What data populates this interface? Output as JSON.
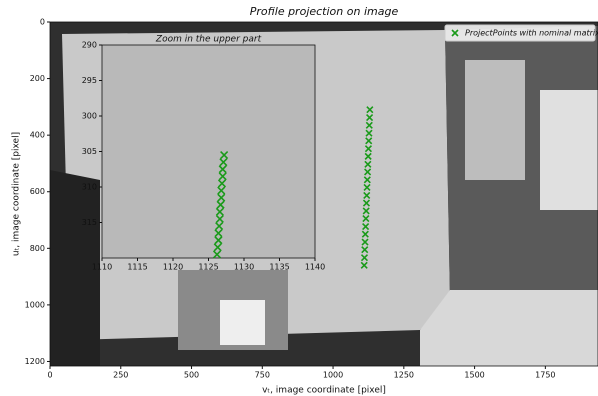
{
  "chart_data": [
    {
      "type": "scatter",
      "title": "Profile projection on image",
      "xlabel": "vₜ, image coordinate [pixel]",
      "ylabel": "uₜ, image coordinate [pixel]",
      "xlim": [
        0,
        1936
      ],
      "ylim": [
        0,
        1216
      ],
      "y_inverted": true,
      "xticks": [
        0,
        250,
        500,
        750,
        1000,
        1250,
        1500,
        1750
      ],
      "yticks": [
        0,
        200,
        400,
        600,
        800,
        1000,
        1200
      ],
      "legend": "upper right",
      "series": [
        {
          "name": "ProjectPoints with nominal matrix",
          "color": "#1a9a1a",
          "x": [
            1130,
            1129,
            1128,
            1127,
            1126,
            1125,
            1124,
            1123,
            1122,
            1121,
            1120,
            1119,
            1118,
            1117,
            1116,
            1115,
            1114,
            1113,
            1112,
            1111,
            1110
          ],
          "values": [
            310,
            338,
            365,
            393,
            420,
            448,
            475,
            503,
            530,
            558,
            585,
            613,
            640,
            668,
            695,
            723,
            750,
            778,
            805,
            833,
            860
          ]
        }
      ]
    },
    {
      "type": "scatter",
      "title": "Zoom in the upper part",
      "xlim": [
        1110,
        1140
      ],
      "ylim": [
        290,
        320
      ],
      "y_inverted": true,
      "xticks": [
        1110,
        1115,
        1120,
        1125,
        1130,
        1135,
        1140
      ],
      "yticks": [
        290,
        295,
        300,
        305,
        310,
        315
      ],
      "series": [
        {
          "color": "#1a9a1a",
          "x": [
            1127.2,
            1127.1,
            1127.0,
            1127.0,
            1126.9,
            1126.8,
            1126.8,
            1126.7,
            1126.6,
            1126.6,
            1126.5,
            1126.4,
            1126.4,
            1126.3,
            1126.2
          ],
          "values": [
            305.5,
            306.5,
            307.5,
            308.5,
            309.5,
            310.5,
            311.5,
            312.5,
            313.5,
            314.5,
            315.5,
            316.5,
            317.5,
            318.5,
            319.5
          ]
        }
      ]
    }
  ]
}
